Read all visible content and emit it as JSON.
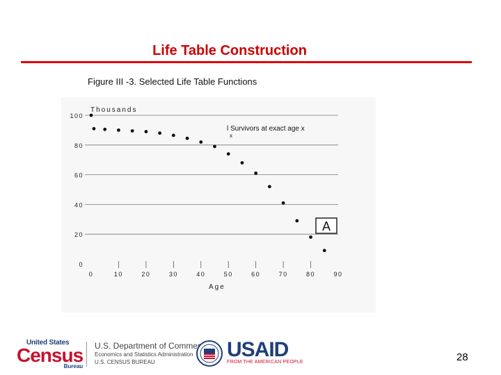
{
  "slide": {
    "title": "Life Table Construction",
    "figure_caption": "Figure III -3. Selected Life Table Functions",
    "page_number": "28"
  },
  "footer": {
    "census_top": "United States",
    "census_main": "Census",
    "census_bottom": "Bureau",
    "commerce_line1": "U.S. Department of Commerce",
    "commerce_line2": "Economics and Statistics Administration",
    "commerce_line3": "U.S. CENSUS BUREAU",
    "usaid_word": "USAID",
    "usaid_tagline": "FROM THE AMERICAN PEOPLE"
  },
  "colors": {
    "title": "#cc0000",
    "rule": "#e00000",
    "census_red": "#c8102e",
    "census_blue": "#1f3f7a"
  },
  "chart_data": {
    "type": "scatter",
    "ylabel": "Thousands",
    "xlabel": "Age",
    "x_ticks": [
      "0",
      "10",
      "20",
      "30",
      "40",
      "50",
      "60",
      "70",
      "80",
      "90"
    ],
    "y_ticks": [
      "0",
      "20",
      "40",
      "60",
      "80",
      "100"
    ],
    "xlim": [
      0,
      90
    ],
    "ylim": [
      0,
      100
    ],
    "grid": "horizontal",
    "annotation": "l Survivors at exact age x",
    "annotation_sub": "x",
    "marker_label": "A",
    "series": [
      {
        "x": [
          0,
          1,
          5,
          10,
          15,
          20,
          25,
          30,
          35,
          40,
          45,
          50,
          55,
          60,
          65,
          70,
          75,
          80,
          85
        ],
        "y": [
          100,
          91,
          90.5,
          90,
          89.5,
          89,
          88,
          86.5,
          84.5,
          82,
          79,
          74,
          68,
          61,
          52,
          41,
          29,
          18,
          9
        ]
      }
    ]
  }
}
